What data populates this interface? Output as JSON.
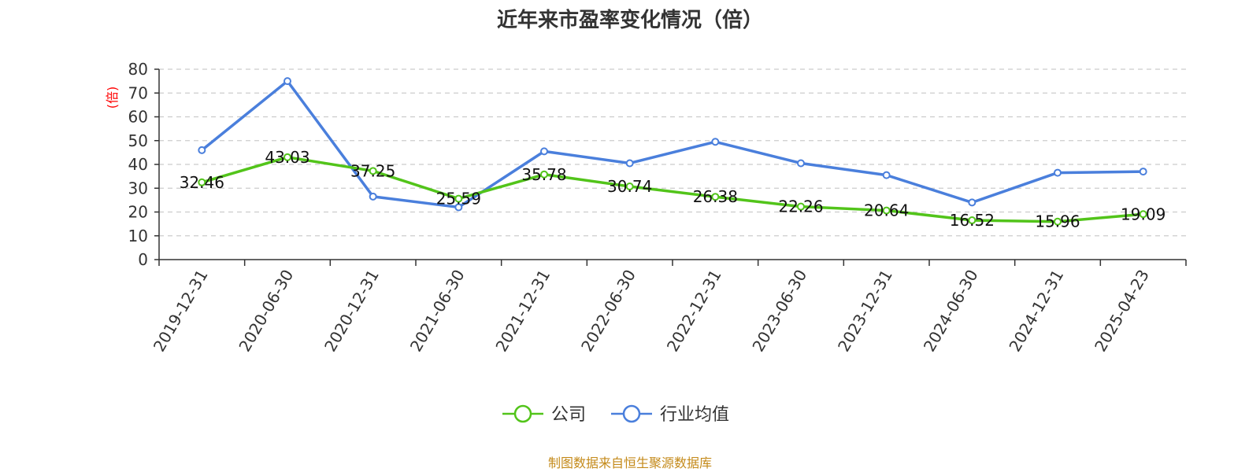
{
  "chart_data": {
    "type": "line",
    "title": "近年来市盈率变化情况（倍）",
    "xlabel": "",
    "ylabel": "(倍)",
    "categories": [
      "2019-12-31",
      "2020-06-30",
      "2020-12-31",
      "2021-06-30",
      "2021-12-31",
      "2022-06-30",
      "2022-12-31",
      "2023-06-30",
      "2023-12-31",
      "2024-06-30",
      "2024-12-31",
      "2025-04-23"
    ],
    "series": [
      {
        "name": "公司",
        "color": "#52c41a",
        "values": [
          32.46,
          43.03,
          37.25,
          25.59,
          35.78,
          30.74,
          26.38,
          22.26,
          20.64,
          16.52,
          15.96,
          19.09
        ],
        "labels": [
          "32.46",
          "43.03",
          "37.25",
          "25.59",
          "35.78",
          "30.74",
          "26.38",
          "22.26",
          "20.64",
          "16.52",
          "15.96",
          "19.09"
        ]
      },
      {
        "name": "行业均值",
        "color": "#4a7fdc",
        "values": [
          46,
          75,
          26.5,
          22,
          45.5,
          40.5,
          49.5,
          40.5,
          35.5,
          24,
          36.5,
          37
        ],
        "labels": []
      }
    ],
    "ylim": [
      0,
      80
    ],
    "yticks": [
      0,
      10,
      20,
      30,
      40,
      50,
      60,
      70,
      80
    ],
    "ytick_labels": [
      "0",
      "10",
      "20",
      "30",
      "40",
      "50",
      "60",
      "70",
      "80"
    ],
    "grid": true,
    "legend": "bottom-center"
  },
  "source": "制图数据来自恒生聚源数据库"
}
